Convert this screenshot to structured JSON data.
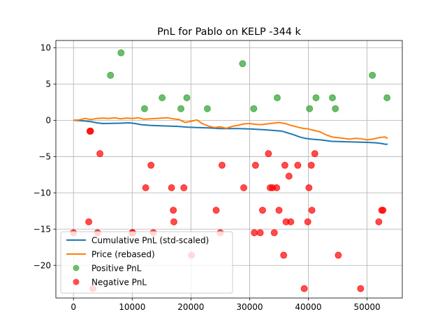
{
  "chart_data": {
    "type": "line+scatter",
    "title": "PnL for Pablo on KELP -344 k",
    "xlim": [
      -3000,
      56000
    ],
    "ylim": [
      -24.5,
      11
    ],
    "xticks": [
      0,
      10000,
      20000,
      30000,
      40000,
      50000
    ],
    "xtick_labels": [
      "0",
      "10000",
      "20000",
      "30000",
      "40000",
      "50000"
    ],
    "yticks": [
      -20,
      -15,
      -10,
      -5,
      0,
      5,
      10
    ],
    "ytick_labels": [
      "−20",
      "−15",
      "−10",
      "−5",
      "0",
      "5",
      "10"
    ],
    "grid": true,
    "legend_position": "lower-left",
    "series": [
      {
        "name": "Cumulative PnL (std-scaled)",
        "kind": "line",
        "color": "#1f77b4",
        "points": [
          [
            0,
            0
          ],
          [
            2000,
            -0.1
          ],
          [
            3000,
            -0.2
          ],
          [
            4000,
            -0.35
          ],
          [
            5000,
            -0.45
          ],
          [
            8000,
            -0.4
          ],
          [
            9500,
            -0.35
          ],
          [
            10500,
            -0.45
          ],
          [
            11500,
            -0.6
          ],
          [
            13000,
            -0.7
          ],
          [
            14500,
            -0.75
          ],
          [
            16500,
            -0.8
          ],
          [
            18000,
            -0.85
          ],
          [
            19500,
            -0.95
          ],
          [
            21000,
            -1.0
          ],
          [
            23000,
            -1.05
          ],
          [
            25000,
            -1.15
          ],
          [
            28000,
            -1.15
          ],
          [
            30000,
            -1.2
          ],
          [
            32500,
            -1.3
          ],
          [
            34000,
            -1.4
          ],
          [
            35500,
            -1.5
          ],
          [
            36500,
            -1.75
          ],
          [
            37500,
            -2.0
          ],
          [
            38500,
            -2.3
          ],
          [
            39500,
            -2.5
          ],
          [
            40500,
            -2.6
          ],
          [
            42000,
            -2.7
          ],
          [
            44000,
            -2.9
          ],
          [
            46000,
            -2.95
          ],
          [
            48000,
            -3.0
          ],
          [
            50000,
            -3.05
          ],
          [
            51500,
            -3.1
          ],
          [
            52500,
            -3.2
          ],
          [
            53000,
            -3.3
          ],
          [
            53500,
            -3.3
          ]
        ]
      },
      {
        "name": "Price (rebased)",
        "kind": "line",
        "color": "#ff7f0e",
        "points": [
          [
            0,
            0
          ],
          [
            1000,
            0.05
          ],
          [
            2000,
            0.25
          ],
          [
            3000,
            0.1
          ],
          [
            4000,
            0.25
          ],
          [
            5000,
            0.3
          ],
          [
            6000,
            0.25
          ],
          [
            7000,
            0.35
          ],
          [
            8000,
            0.2
          ],
          [
            9000,
            0.3
          ],
          [
            10000,
            0.25
          ],
          [
            11000,
            0.35
          ],
          [
            12000,
            0.15
          ],
          [
            13000,
            0.2
          ],
          [
            14000,
            0.25
          ],
          [
            15000,
            0.3
          ],
          [
            16000,
            0.35
          ],
          [
            17000,
            0.2
          ],
          [
            18000,
            0.1
          ],
          [
            19000,
            -0.3
          ],
          [
            20000,
            -0.15
          ],
          [
            21000,
            0.05
          ],
          [
            22000,
            -0.5
          ],
          [
            23000,
            -0.8
          ],
          [
            24000,
            -1.0
          ],
          [
            25000,
            -0.9
          ],
          [
            26000,
            -1.1
          ],
          [
            27000,
            -0.85
          ],
          [
            28000,
            -0.7
          ],
          [
            29000,
            -0.5
          ],
          [
            30000,
            -0.45
          ],
          [
            31000,
            -0.55
          ],
          [
            32000,
            -0.6
          ],
          [
            33000,
            -0.5
          ],
          [
            34000,
            -0.4
          ],
          [
            35000,
            -0.3
          ],
          [
            36000,
            -0.45
          ],
          [
            37000,
            -0.7
          ],
          [
            38000,
            -0.9
          ],
          [
            39000,
            -1.1
          ],
          [
            40000,
            -1.2
          ],
          [
            41000,
            -1.4
          ],
          [
            42000,
            -1.6
          ],
          [
            43000,
            -2.0
          ],
          [
            44000,
            -2.3
          ],
          [
            45000,
            -2.4
          ],
          [
            46000,
            -2.5
          ],
          [
            47000,
            -2.6
          ],
          [
            48000,
            -2.5
          ],
          [
            49000,
            -2.55
          ],
          [
            50000,
            -2.7
          ],
          [
            51000,
            -2.6
          ],
          [
            52000,
            -2.4
          ],
          [
            53000,
            -2.3
          ],
          [
            53500,
            -2.5
          ]
        ]
      },
      {
        "name": "Positive PnL",
        "kind": "scatter",
        "color": "#2ca02c",
        "points": [
          [
            6300,
            6.2
          ],
          [
            8100,
            9.3
          ],
          [
            12100,
            1.6
          ],
          [
            15100,
            3.1
          ],
          [
            18300,
            1.6
          ],
          [
            19300,
            3.1
          ],
          [
            22800,
            1.6
          ],
          [
            28800,
            7.8
          ],
          [
            30700,
            1.6
          ],
          [
            34700,
            3.1
          ],
          [
            40200,
            1.6
          ],
          [
            41300,
            3.1
          ],
          [
            44100,
            3.1
          ],
          [
            44600,
            1.6
          ],
          [
            50900,
            6.2
          ],
          [
            53400,
            3.1
          ]
        ]
      },
      {
        "name": "Negative PnL",
        "kind": "scatter",
        "color": "#ff0000",
        "points": [
          [
            0,
            -15.5
          ],
          [
            2800,
            -1.5
          ],
          [
            2900,
            -1.5
          ],
          [
            2600,
            -14.0
          ],
          [
            3300,
            -23.2
          ],
          [
            4100,
            -15.5
          ],
          [
            4500,
            -4.6
          ],
          [
            10000,
            -15.5
          ],
          [
            10100,
            -15.5
          ],
          [
            12300,
            -9.3
          ],
          [
            13200,
            -6.2
          ],
          [
            13600,
            -15.5
          ],
          [
            16700,
            -9.3
          ],
          [
            17000,
            -12.4
          ],
          [
            17100,
            -14.0
          ],
          [
            18800,
            -9.3
          ],
          [
            20100,
            -18.6
          ],
          [
            24300,
            -12.4
          ],
          [
            25000,
            -15.5
          ],
          [
            25300,
            -6.2
          ],
          [
            29000,
            -9.3
          ],
          [
            30800,
            -15.5
          ],
          [
            31000,
            -6.2
          ],
          [
            31800,
            -15.5
          ],
          [
            32200,
            -12.4
          ],
          [
            33200,
            -4.6
          ],
          [
            33500,
            -9.3
          ],
          [
            33900,
            -9.3
          ],
          [
            34200,
            -15.5
          ],
          [
            34600,
            -9.3
          ],
          [
            35000,
            -12.4
          ],
          [
            35800,
            -18.6
          ],
          [
            36000,
            -6.2
          ],
          [
            36200,
            -14.0
          ],
          [
            36700,
            -7.7
          ],
          [
            37000,
            -14.0
          ],
          [
            38200,
            -6.2
          ],
          [
            39300,
            -23.2
          ],
          [
            39900,
            -14.0
          ],
          [
            40100,
            -9.3
          ],
          [
            40500,
            -6.2
          ],
          [
            40600,
            -12.4
          ],
          [
            41100,
            -4.6
          ],
          [
            45100,
            -18.6
          ],
          [
            48900,
            -23.2
          ],
          [
            52000,
            -14.0
          ],
          [
            52500,
            -12.4
          ],
          [
            52700,
            -12.4
          ]
        ]
      }
    ]
  }
}
